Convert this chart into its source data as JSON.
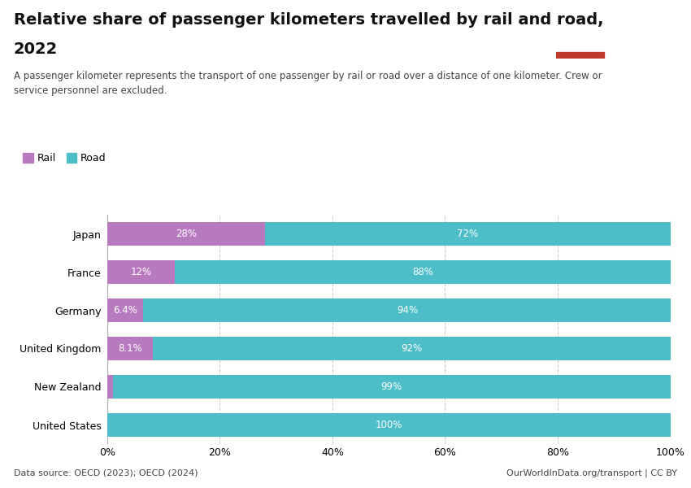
{
  "title_line1": "Relative share of passenger kilometers travelled by rail and road,",
  "title_line2": "2022",
  "subtitle": "A passenger kilometer represents the transport of one passenger by rail or road over a distance of one kilometer. Crew or\nservice personnel are excluded.",
  "countries": [
    "Japan",
    "France",
    "Germany",
    "United Kingdom",
    "New Zealand",
    "United States"
  ],
  "rail_values": [
    28,
    12,
    6.4,
    8.1,
    1,
    0
  ],
  "road_values": [
    72,
    88,
    94,
    92,
    99,
    100
  ],
  "rail_labels": [
    "28%",
    "12%",
    "6.4%",
    "8.1%",
    "",
    ""
  ],
  "road_labels": [
    "72%",
    "88%",
    "94%",
    "92%",
    "99%",
    "100%"
  ],
  "rail_color": "#b87abf",
  "road_color": "#4dbdc8",
  "bg_color": "#ffffff",
  "data_source": "Data source: OECD (2023); OECD (2024)",
  "credit": "OurWorldInData.org/transport | CC BY",
  "legend_rail": "Rail",
  "legend_road": "Road",
  "owid_box_color": "#1a3a5c",
  "owid_box_red": "#c0392b",
  "bar_height": 0.6,
  "title1_fontsize": 14,
  "title2_fontsize": 14,
  "subtitle_fontsize": 8.5,
  "label_fontsize": 8.5,
  "tick_fontsize": 9,
  "legend_fontsize": 9,
  "footer_fontsize": 8
}
